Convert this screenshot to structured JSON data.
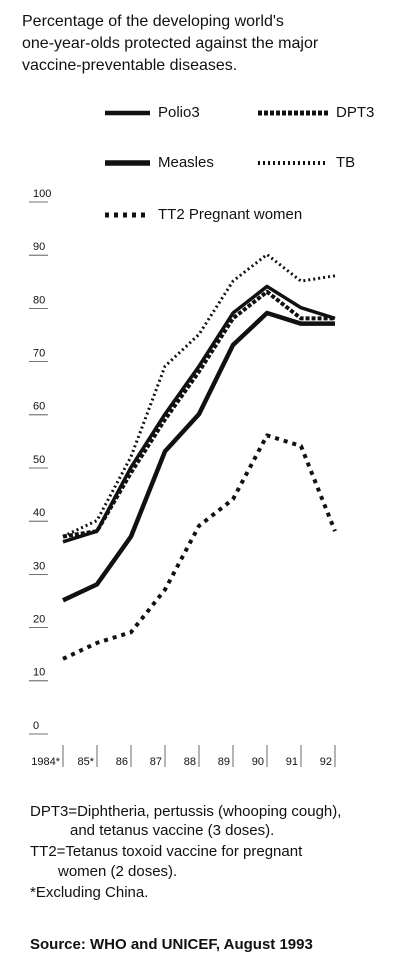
{
  "chart_data": {
    "type": "line",
    "title": [
      "Percentage of the developing world's",
      "one-year-olds protected against the major",
      "vaccine-preventable diseases."
    ],
    "categories": [
      "1984*",
      "85*",
      "86",
      "87",
      "88",
      "89",
      "90",
      "91",
      "92"
    ],
    "series": [
      {
        "name": "Polio3",
        "color": "#111111",
        "dash": "",
        "width": 3.5,
        "values": [
          35,
          37,
          49,
          59,
          68,
          78,
          83,
          79,
          77
        ]
      },
      {
        "name": "DPT3",
        "color": "#111111",
        "dash": "4 2",
        "width": 4,
        "values": [
          36,
          37,
          48,
          58,
          67,
          77,
          82,
          77,
          77
        ]
      },
      {
        "name": "Measles",
        "color": "#111111",
        "dash": "",
        "width": 4.5,
        "values": [
          24,
          27,
          36,
          52,
          59,
          72,
          78,
          76,
          76
        ]
      },
      {
        "name": "TB",
        "color": "#111111",
        "dash": "2 3",
        "width": 3,
        "values": [
          36,
          39,
          51,
          68,
          74,
          84,
          89,
          84,
          85
        ]
      },
      {
        "name": "TT2 Pregnant women",
        "color": "#111111",
        "dash": "4 5",
        "width": 4,
        "values": [
          13,
          16,
          18,
          26,
          38,
          43,
          55,
          53,
          37
        ]
      }
    ],
    "ylim": [
      0,
      100
    ],
    "yticks": [
      0,
      10,
      20,
      30,
      40,
      50,
      60,
      70,
      80,
      90,
      100
    ],
    "notes": [
      "DPT3=Diphtheria, pertussis (whooping cough),",
      "and tetanus vaccine (3 doses).",
      "TT2=Tetanus toxoid vaccine for pregnant",
      "women (2 doses).",
      "*Excluding China."
    ],
    "source": "Source: WHO and UNICEF, August 1993"
  }
}
